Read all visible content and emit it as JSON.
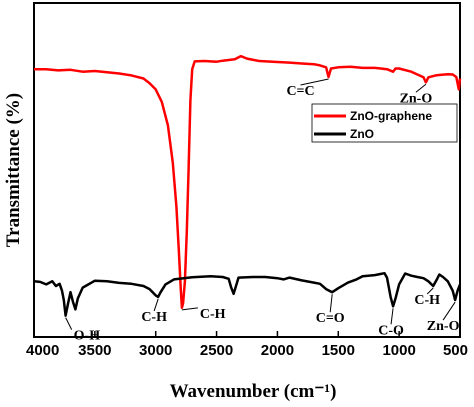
{
  "chart_data": {
    "type": "line",
    "title": "",
    "xlabel": "Wavenumber (cm⁻¹)",
    "ylabel": "Transmittance (%)",
    "xlim": [
      4000,
      500
    ],
    "x_ticks": [
      4000,
      3500,
      3000,
      2500,
      2000,
      1500,
      1000,
      500
    ],
    "y_ticks_shown": false,
    "grid": false,
    "legend_position": "right",
    "series": [
      {
        "name": "ZnO-graphene",
        "color": "#ff0000",
        "points": [
          [
            4000,
            82
          ],
          [
            3900,
            82
          ],
          [
            3800,
            81.6
          ],
          [
            3700,
            81.8
          ],
          [
            3600,
            81.2
          ],
          [
            3500,
            81.4
          ],
          [
            3400,
            81.0
          ],
          [
            3300,
            80.6
          ],
          [
            3200,
            80.0
          ],
          [
            3100,
            79.0
          ],
          [
            3050,
            77.5
          ],
          [
            3000,
            75.5
          ],
          [
            2950,
            71.5
          ],
          [
            2900,
            64.0
          ],
          [
            2860,
            52.0
          ],
          [
            2830,
            38.0
          ],
          [
            2810,
            24.0
          ],
          [
            2795,
            12.0
          ],
          [
            2785,
            5.5
          ],
          [
            2775,
            7.0
          ],
          [
            2760,
            14.0
          ],
          [
            2745,
            30.0
          ],
          [
            2730,
            50.0
          ],
          [
            2715,
            72.0
          ],
          [
            2700,
            82.0
          ],
          [
            2680,
            84.5
          ],
          [
            2600,
            84.6
          ],
          [
            2500,
            84.4
          ],
          [
            2450,
            84.7
          ],
          [
            2350,
            85.2
          ],
          [
            2300,
            86.2
          ],
          [
            2250,
            85.4
          ],
          [
            2150,
            84.6
          ],
          [
            2000,
            84.3
          ],
          [
            1900,
            84.1
          ],
          [
            1800,
            83.8
          ],
          [
            1700,
            83.6
          ],
          [
            1650,
            83.2
          ],
          [
            1600,
            82.6
          ],
          [
            1580,
            79.5
          ],
          [
            1560,
            82.2
          ],
          [
            1500,
            82.6
          ],
          [
            1400,
            82.8
          ],
          [
            1300,
            82.4
          ],
          [
            1200,
            82.4
          ],
          [
            1100,
            82.0
          ],
          [
            1050,
            81.2
          ],
          [
            1030,
            82.2
          ],
          [
            1000,
            82.2
          ],
          [
            900,
            81.2
          ],
          [
            800,
            79.4
          ],
          [
            780,
            77.8
          ],
          [
            760,
            79.4
          ],
          [
            700,
            80.0
          ],
          [
            650,
            80.2
          ],
          [
            600,
            80.4
          ],
          [
            560,
            80.3
          ],
          [
            530,
            79.5
          ],
          [
            510,
            75.5
          ],
          [
            500,
            79.0
          ]
        ]
      },
      {
        "name": "ZnO",
        "color": "#000000",
        "points": [
          [
            4000,
            14.0
          ],
          [
            3950,
            13.8
          ],
          [
            3900,
            13.0
          ],
          [
            3850,
            14.0
          ],
          [
            3820,
            12.5
          ],
          [
            3790,
            13.2
          ],
          [
            3770,
            11.0
          ],
          [
            3755,
            8.0
          ],
          [
            3740,
            3.0
          ],
          [
            3720,
            7.0
          ],
          [
            3700,
            10.5
          ],
          [
            3680,
            7.5
          ],
          [
            3660,
            5.0
          ],
          [
            3640,
            8.5
          ],
          [
            3600,
            12.0
          ],
          [
            3500,
            14.2
          ],
          [
            3400,
            14.0
          ],
          [
            3300,
            13.5
          ],
          [
            3200,
            13.2
          ],
          [
            3100,
            12.5
          ],
          [
            3050,
            11.5
          ],
          [
            3000,
            9.5
          ],
          [
            2980,
            9.0
          ],
          [
            2960,
            10.5
          ],
          [
            2920,
            13.0
          ],
          [
            2850,
            14.6
          ],
          [
            2700,
            15.3
          ],
          [
            2550,
            15.6
          ],
          [
            2450,
            15.4
          ],
          [
            2400,
            14.8
          ],
          [
            2380,
            12.0
          ],
          [
            2360,
            10.0
          ],
          [
            2340,
            12.5
          ],
          [
            2320,
            15.2
          ],
          [
            2200,
            15.4
          ],
          [
            2100,
            15.4
          ],
          [
            2000,
            15.0
          ],
          [
            1950,
            14.6
          ],
          [
            1900,
            15.2
          ],
          [
            1800,
            14.3
          ],
          [
            1700,
            13.6
          ],
          [
            1650,
            13.2
          ],
          [
            1600,
            11.5
          ],
          [
            1550,
            10.5
          ],
          [
            1500,
            11.8
          ],
          [
            1420,
            13.6
          ],
          [
            1350,
            14.6
          ],
          [
            1300,
            15.6
          ],
          [
            1200,
            16.0
          ],
          [
            1120,
            16.6
          ],
          [
            1100,
            15.2
          ],
          [
            1070,
            9.0
          ],
          [
            1050,
            6.0
          ],
          [
            1030,
            8.5
          ],
          [
            1000,
            13.0
          ],
          [
            950,
            16.5
          ],
          [
            900,
            15.8
          ],
          [
            850,
            15.4
          ],
          [
            800,
            15.0
          ],
          [
            760,
            14.0
          ],
          [
            720,
            12.5
          ],
          [
            690,
            14.6
          ],
          [
            670,
            16.2
          ],
          [
            640,
            15.4
          ],
          [
            600,
            14.0
          ],
          [
            560,
            11.0
          ],
          [
            540,
            8.0
          ],
          [
            520,
            11.0
          ],
          [
            500,
            13.0
          ]
        ]
      }
    ],
    "annotations": [
      {
        "text": "C-H",
        "series": 0,
        "x": 2785,
        "y": 5.5
      },
      {
        "text": "C=C",
        "series": 0,
        "x": 1580,
        "y": 79.5
      },
      {
        "text": "Zn-O",
        "series": 0,
        "x": 780,
        "y": 77.8
      },
      {
        "text": "O-H",
        "series": 1,
        "x": 3740,
        "y": 3.0
      },
      {
        "text": "C-H",
        "series": 1,
        "x": 2980,
        "y": 9.0
      },
      {
        "text": "C=O",
        "series": 1,
        "x": 1550,
        "y": 10.5
      },
      {
        "text": "C-O",
        "series": 1,
        "x": 1050,
        "y": 6.0
      },
      {
        "text": "C-H",
        "series": 1,
        "x": 720,
        "y": 12.5
      },
      {
        "text": "Zn-O",
        "series": 1,
        "x": 540,
        "y": 8.0
      }
    ]
  }
}
